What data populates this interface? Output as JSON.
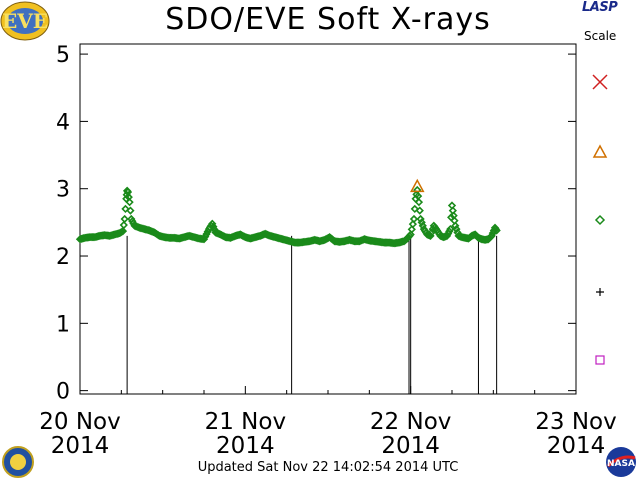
{
  "header": {
    "title": "SDO/EVE Soft X-rays",
    "lasp_logo_text": "LASP",
    "scale_label": "Scale"
  },
  "footer": {
    "updated": "Updated Sat Nov 22 14:02:54 2014 UTC"
  },
  "colors": {
    "series": "#1a8a1a",
    "flare_triangle": "#d07000",
    "flare_x": "#d02020",
    "legend_diamond": "#1a8a1a",
    "legend_plus": "#000000",
    "legend_square": "#c020c0"
  },
  "icons": [
    "eve-logo",
    "lasp-logo",
    "nasa-logo",
    "sdo-logo",
    "x-mark-icon",
    "triangle-icon",
    "diamond-icon",
    "plus-icon",
    "square-icon"
  ],
  "chart_data": {
    "type": "scatter",
    "title": "SDO/EVE Soft X-rays",
    "xlabel": "",
    "ylabel": "",
    "xlim": [
      0,
      3.0
    ],
    "ylim": [
      -0.05,
      5.15
    ],
    "yticks": [
      0,
      1,
      2,
      3,
      4,
      5
    ],
    "xticks": [
      {
        "x": 0,
        "line1": "20 Nov",
        "line2": "2014"
      },
      {
        "x": 1,
        "line1": "21 Nov",
        "line2": "2014"
      },
      {
        "x": 2,
        "line1": "22 Nov",
        "line2": "2014"
      },
      {
        "x": 3,
        "line1": "23 Nov",
        "line2": "2014"
      }
    ],
    "grid": false,
    "x_units": "days from 20 Nov 2014 00:00 UTC",
    "series": [
      {
        "marker": "diamond",
        "points": [
          [
            0.0,
            2.25
          ],
          [
            0.03,
            2.27
          ],
          [
            0.06,
            2.28
          ],
          [
            0.09,
            2.28
          ],
          [
            0.12,
            2.3
          ],
          [
            0.15,
            2.31
          ],
          [
            0.18,
            2.3
          ],
          [
            0.21,
            2.32
          ],
          [
            0.24,
            2.34
          ],
          [
            0.26,
            2.37
          ],
          [
            0.27,
            2.55
          ],
          [
            0.28,
            2.85
          ],
          [
            0.285,
            2.97
          ],
          [
            0.29,
            2.95
          ],
          [
            0.3,
            2.8
          ],
          [
            0.31,
            2.55
          ],
          [
            0.33,
            2.45
          ],
          [
            0.36,
            2.42
          ],
          [
            0.39,
            2.4
          ],
          [
            0.42,
            2.38
          ],
          [
            0.45,
            2.35
          ],
          [
            0.48,
            2.3
          ],
          [
            0.51,
            2.28
          ],
          [
            0.54,
            2.27
          ],
          [
            0.57,
            2.27
          ],
          [
            0.6,
            2.26
          ],
          [
            0.63,
            2.28
          ],
          [
            0.66,
            2.3
          ],
          [
            0.69,
            2.28
          ],
          [
            0.72,
            2.26
          ],
          [
            0.75,
            2.25
          ],
          [
            0.78,
            2.4
          ],
          [
            0.8,
            2.48
          ],
          [
            0.82,
            2.35
          ],
          [
            0.85,
            2.32
          ],
          [
            0.88,
            2.28
          ],
          [
            0.91,
            2.27
          ],
          [
            0.94,
            2.3
          ],
          [
            0.97,
            2.32
          ],
          [
            1.0,
            2.28
          ],
          [
            1.03,
            2.26
          ],
          [
            1.06,
            2.28
          ],
          [
            1.09,
            2.3
          ],
          [
            1.12,
            2.33
          ],
          [
            1.15,
            2.3
          ],
          [
            1.18,
            2.28
          ],
          [
            1.21,
            2.26
          ],
          [
            1.24,
            2.24
          ],
          [
            1.27,
            2.22
          ],
          [
            1.3,
            2.2
          ],
          [
            1.33,
            2.2
          ],
          [
            1.36,
            2.21
          ],
          [
            1.39,
            2.22
          ],
          [
            1.42,
            2.24
          ],
          [
            1.45,
            2.22
          ],
          [
            1.48,
            2.24
          ],
          [
            1.51,
            2.28
          ],
          [
            1.54,
            2.22
          ],
          [
            1.57,
            2.21
          ],
          [
            1.6,
            2.22
          ],
          [
            1.63,
            2.24
          ],
          [
            1.66,
            2.22
          ],
          [
            1.69,
            2.22
          ],
          [
            1.72,
            2.25
          ],
          [
            1.75,
            2.23
          ],
          [
            1.78,
            2.22
          ],
          [
            1.81,
            2.21
          ],
          [
            1.84,
            2.2
          ],
          [
            1.87,
            2.2
          ],
          [
            1.9,
            2.19
          ],
          [
            1.93,
            2.2
          ],
          [
            1.96,
            2.22
          ],
          [
            1.98,
            2.26
          ],
          [
            2.0,
            2.32
          ],
          [
            2.02,
            2.55
          ],
          [
            2.03,
            2.85
          ],
          [
            2.04,
            2.98
          ],
          [
            2.05,
            2.8
          ],
          [
            2.06,
            2.55
          ],
          [
            2.08,
            2.4
          ],
          [
            2.1,
            2.32
          ],
          [
            2.12,
            2.3
          ],
          [
            2.14,
            2.45
          ],
          [
            2.16,
            2.38
          ],
          [
            2.18,
            2.3
          ],
          [
            2.2,
            2.28
          ],
          [
            2.22,
            2.3
          ],
          [
            2.24,
            2.4
          ],
          [
            2.25,
            2.75
          ],
          [
            2.26,
            2.6
          ],
          [
            2.27,
            2.45
          ],
          [
            2.29,
            2.3
          ],
          [
            2.31,
            2.28
          ],
          [
            2.33,
            2.27
          ],
          [
            2.35,
            2.26
          ],
          [
            2.37,
            2.3
          ],
          [
            2.39,
            2.32
          ],
          [
            2.41,
            2.27
          ],
          [
            2.43,
            2.25
          ],
          [
            2.45,
            2.24
          ],
          [
            2.47,
            2.25
          ],
          [
            2.49,
            2.3
          ],
          [
            2.51,
            2.42
          ],
          [
            2.52,
            2.38
          ]
        ]
      }
    ],
    "flare_markers": [
      {
        "x": 2.04,
        "y": 3.02,
        "marker": "triangle"
      }
    ],
    "vertical_lines": [
      0.285,
      1.28,
      1.99,
      2.0,
      2.41,
      2.52
    ],
    "legend": {
      "title": "Scale",
      "placement": "right",
      "entries": [
        {
          "marker": "x"
        },
        {
          "marker": "triangle"
        },
        {
          "marker": "diamond"
        },
        {
          "marker": "plus"
        },
        {
          "marker": "square"
        }
      ]
    }
  }
}
